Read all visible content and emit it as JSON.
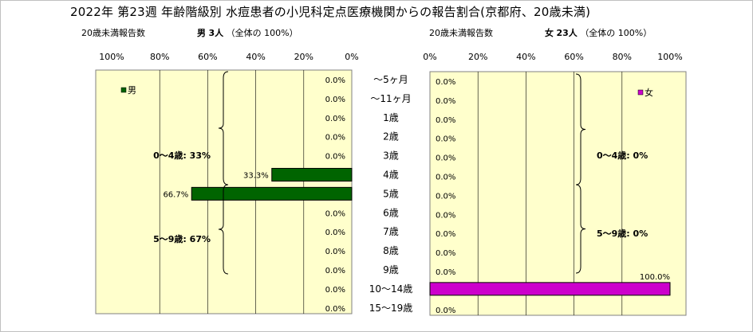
{
  "title": "2022年 第23週 年齢階級別 水痘患者の小児科定点医療機関からの報告割合(京都府、20歳未満)",
  "left_subtitle": {
    "prefix": "20歳未満報告数",
    "sex": "男",
    "count": "3人",
    "note": "（全体の 100%）"
  },
  "right_subtitle": {
    "prefix": "20歳未満報告数",
    "sex": "女",
    "count": "23人",
    "note": "（全体の 100%）"
  },
  "colors": {
    "male": "#006400",
    "female": "#cc00cc",
    "plot_bg": "#ffffcc"
  },
  "chart_data": [
    {
      "type": "bar",
      "orientation": "horizontal",
      "direction": "right-to-left",
      "series": [
        {
          "name": "男",
          "values": [
            0.0,
            0.0,
            0.0,
            0.0,
            0.0,
            33.3,
            66.7,
            0.0,
            0.0,
            0.0,
            0.0,
            0.0,
            0.0
          ]
        }
      ],
      "value_labels": [
        "0.0%",
        "0.0%",
        "0.0%",
        "0.0%",
        "0.0%",
        "33.3%",
        "66.7%",
        "0.0%",
        "0.0%",
        "0.0%",
        "0.0%",
        "0.0%",
        "0.0%"
      ],
      "xlim": [
        0,
        100
      ],
      "xticks": [
        "100%",
        "80%",
        "60%",
        "40%",
        "20%",
        "0%"
      ],
      "legend": "top-left",
      "annotations": [
        {
          "label": "0～4歳: 33%"
        },
        {
          "label": "5～9歳: 67%"
        }
      ]
    },
    {
      "type": "bar",
      "orientation": "horizontal",
      "direction": "left-to-right",
      "series": [
        {
          "name": "女",
          "values": [
            0.0,
            0.0,
            0.0,
            0.0,
            0.0,
            0.0,
            0.0,
            0.0,
            0.0,
            0.0,
            0.0,
            100.0,
            0.0
          ]
        }
      ],
      "value_labels": [
        "0.0%",
        "0.0%",
        "0.0%",
        "0.0%",
        "0.0%",
        "0.0%",
        "0.0%",
        "0.0%",
        "0.0%",
        "0.0%",
        "0.0%",
        "100.0%",
        "0.0%"
      ],
      "xlim": [
        0,
        100
      ],
      "xticks": [
        "0%",
        "20%",
        "40%",
        "60%",
        "80%",
        "100%"
      ],
      "legend": "top-right",
      "annotations": [
        {
          "label": "0～4歳: 0%"
        },
        {
          "label": "5～9歳: 0%"
        }
      ]
    }
  ],
  "categories": [
    "～5ヶ月",
    "～11ヶ月",
    "1歳",
    "2歳",
    "3歳",
    "4歳",
    "5歳",
    "6歳",
    "7歳",
    "8歳",
    "9歳",
    "10～14歳",
    "15～19歳"
  ]
}
